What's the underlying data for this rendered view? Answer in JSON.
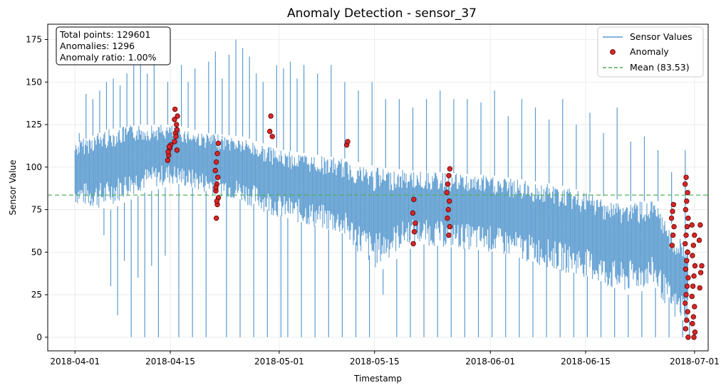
{
  "chart_data": {
    "type": "line",
    "title": "Anomaly Detection - sensor_37",
    "xlabel": "Timestamp",
    "ylabel": "Sensor Value",
    "xlim": [
      "2018-03-28",
      "2018-07-03"
    ],
    "ylim": [
      -8,
      184
    ],
    "x_ticks": [
      "2018-04-01",
      "2018-04-15",
      "2018-05-01",
      "2018-05-15",
      "2018-06-01",
      "2018-06-15",
      "2018-07-01"
    ],
    "y_ticks": [
      0,
      25,
      50,
      75,
      100,
      125,
      150,
      175
    ],
    "grid": true,
    "legend_position": "top-right",
    "stats": {
      "total_points": "Total points: 129601",
      "anomalies": "Anomalies: 1296",
      "anomaly_ratio": "Anomaly ratio: 1.00%"
    },
    "series": [
      {
        "name": "Sensor Values",
        "color": "#5b9bd0",
        "band": [
          {
            "date": "2018-04-01",
            "low": 78,
            "high": 115
          },
          {
            "date": "2018-04-05",
            "low": 75,
            "high": 122
          },
          {
            "date": "2018-04-10",
            "low": 85,
            "high": 125
          },
          {
            "date": "2018-04-15",
            "low": 90,
            "high": 125
          },
          {
            "date": "2018-04-20",
            "low": 85,
            "high": 120
          },
          {
            "date": "2018-04-25",
            "low": 80,
            "high": 118
          },
          {
            "date": "2018-05-01",
            "low": 70,
            "high": 110
          },
          {
            "date": "2018-05-10",
            "low": 60,
            "high": 105
          },
          {
            "date": "2018-05-15",
            "low": 40,
            "high": 100
          },
          {
            "date": "2018-05-20",
            "low": 55,
            "high": 98
          },
          {
            "date": "2018-06-01",
            "low": 50,
            "high": 95
          },
          {
            "date": "2018-06-10",
            "low": 40,
            "high": 90
          },
          {
            "date": "2018-06-15",
            "low": 35,
            "high": 85
          },
          {
            "date": "2018-06-20",
            "low": 25,
            "high": 80
          },
          {
            "date": "2018-06-25",
            "low": 30,
            "high": 80
          },
          {
            "date": "2018-06-28",
            "low": 10,
            "high": 60
          },
          {
            "date": "2018-06-30",
            "low": 10,
            "high": 55
          }
        ],
        "spikes": [
          {
            "date": "2018-04-01",
            "value": 120
          },
          {
            "date": "2018-04-02",
            "value": 143
          },
          {
            "date": "2018-04-03",
            "value": 140
          },
          {
            "date": "2018-04-04",
            "value": 145
          },
          {
            "date": "2018-04-05",
            "value": 150
          },
          {
            "date": "2018-04-06",
            "value": 152
          },
          {
            "date": "2018-04-07",
            "value": 148
          },
          {
            "date": "2018-04-08",
            "value": 155
          },
          {
            "date": "2018-04-09",
            "value": 160
          },
          {
            "date": "2018-04-10",
            "value": 163
          },
          {
            "date": "2018-04-11",
            "value": 155
          },
          {
            "date": "2018-04-12",
            "value": 165
          },
          {
            "date": "2018-04-14",
            "value": 150
          },
          {
            "date": "2018-04-16",
            "value": 160
          },
          {
            "date": "2018-04-17",
            "value": 150
          },
          {
            "date": "2018-04-18",
            "value": 158
          },
          {
            "date": "2018-04-20",
            "value": 162
          },
          {
            "date": "2018-04-21",
            "value": 168
          },
          {
            "date": "2018-04-22",
            "value": 152
          },
          {
            "date": "2018-04-23",
            "value": 166
          },
          {
            "date": "2018-04-24",
            "value": 175
          },
          {
            "date": "2018-04-25",
            "value": 170
          },
          {
            "date": "2018-04-26",
            "value": 165
          },
          {
            "date": "2018-04-27",
            "value": 155
          },
          {
            "date": "2018-04-28",
            "value": 150
          },
          {
            "date": "2018-04-30",
            "value": 160
          },
          {
            "date": "2018-05-01",
            "value": 158
          },
          {
            "date": "2018-05-02",
            "value": 162
          },
          {
            "date": "2018-05-03",
            "value": 152
          },
          {
            "date": "2018-05-04",
            "value": 160
          },
          {
            "date": "2018-05-06",
            "value": 155
          },
          {
            "date": "2018-05-08",
            "value": 160
          },
          {
            "date": "2018-05-10",
            "value": 150
          },
          {
            "date": "2018-05-12",
            "value": 145
          },
          {
            "date": "2018-05-14",
            "value": 150
          },
          {
            "date": "2018-05-16",
            "value": 140
          },
          {
            "date": "2018-05-18",
            "value": 140
          },
          {
            "date": "2018-05-20",
            "value": 135
          },
          {
            "date": "2018-05-22",
            "value": 140
          },
          {
            "date": "2018-05-24",
            "value": 145
          },
          {
            "date": "2018-05-26",
            "value": 140
          },
          {
            "date": "2018-05-28",
            "value": 140
          },
          {
            "date": "2018-05-30",
            "value": 138
          },
          {
            "date": "2018-06-01",
            "value": 145
          },
          {
            "date": "2018-06-03",
            "value": 130
          },
          {
            "date": "2018-06-05",
            "value": 140
          },
          {
            "date": "2018-06-07",
            "value": 135
          },
          {
            "date": "2018-06-09",
            "value": 128
          },
          {
            "date": "2018-06-11",
            "value": 140
          },
          {
            "date": "2018-06-13",
            "value": 125
          },
          {
            "date": "2018-06-15",
            "value": 132
          },
          {
            "date": "2018-06-17",
            "value": 120
          },
          {
            "date": "2018-06-19",
            "value": 135
          },
          {
            "date": "2018-06-21",
            "value": 115
          },
          {
            "date": "2018-06-23",
            "value": 118
          },
          {
            "date": "2018-06-25",
            "value": 110
          },
          {
            "date": "2018-06-27",
            "value": 97
          },
          {
            "date": "2018-06-29",
            "value": 110
          }
        ],
        "drops": [
          {
            "date": "2018-04-02",
            "value": 80
          },
          {
            "date": "2018-04-04",
            "value": 60
          },
          {
            "date": "2018-04-05",
            "value": 30
          },
          {
            "date": "2018-04-06",
            "value": 13
          },
          {
            "date": "2018-04-07",
            "value": 45
          },
          {
            "date": "2018-04-08",
            "value": 0
          },
          {
            "date": "2018-04-09",
            "value": 35
          },
          {
            "date": "2018-04-10",
            "value": 0
          },
          {
            "date": "2018-04-11",
            "value": 42
          },
          {
            "date": "2018-04-12",
            "value": 0
          },
          {
            "date": "2018-04-13",
            "value": 48
          },
          {
            "date": "2018-04-15",
            "value": 0
          },
          {
            "date": "2018-04-17",
            "value": 0
          },
          {
            "date": "2018-04-19",
            "value": 0
          },
          {
            "date": "2018-04-22",
            "value": 0
          },
          {
            "date": "2018-04-24",
            "value": 0
          },
          {
            "date": "2018-04-26",
            "value": 0
          },
          {
            "date": "2018-04-28",
            "value": 0
          },
          {
            "date": "2018-04-30",
            "value": 0
          },
          {
            "date": "2018-05-01",
            "value": 0
          },
          {
            "date": "2018-05-03",
            "value": 0
          },
          {
            "date": "2018-05-05",
            "value": 0
          },
          {
            "date": "2018-05-07",
            "value": 0
          },
          {
            "date": "2018-05-09",
            "value": 0
          },
          {
            "date": "2018-05-11",
            "value": 0
          },
          {
            "date": "2018-05-13",
            "value": 0
          },
          {
            "date": "2018-05-15",
            "value": 25
          },
          {
            "date": "2018-05-17",
            "value": 0
          },
          {
            "date": "2018-05-19",
            "value": 0
          },
          {
            "date": "2018-05-21",
            "value": 0
          },
          {
            "date": "2018-05-23",
            "value": 0
          },
          {
            "date": "2018-05-25",
            "value": 0
          },
          {
            "date": "2018-05-27",
            "value": 0
          },
          {
            "date": "2018-05-29",
            "value": 0
          },
          {
            "date": "2018-05-31",
            "value": 0
          },
          {
            "date": "2018-06-02",
            "value": 0
          },
          {
            "date": "2018-06-04",
            "value": 0
          },
          {
            "date": "2018-06-06",
            "value": 0
          },
          {
            "date": "2018-06-08",
            "value": 0
          },
          {
            "date": "2018-06-10",
            "value": 0
          },
          {
            "date": "2018-06-12",
            "value": 0
          },
          {
            "date": "2018-06-14",
            "value": 0
          },
          {
            "date": "2018-06-16",
            "value": 0
          },
          {
            "date": "2018-06-18",
            "value": 0
          },
          {
            "date": "2018-06-20",
            "value": 0
          },
          {
            "date": "2018-06-22",
            "value": 0
          },
          {
            "date": "2018-06-24",
            "value": 0
          },
          {
            "date": "2018-06-26",
            "value": 0
          },
          {
            "date": "2018-06-28",
            "value": 0
          },
          {
            "date": "2018-06-29",
            "value": 0
          }
        ]
      },
      {
        "name": "Anomaly",
        "color": "#d62728",
        "edge_color": "#5a0000",
        "points": [
          {
            "date": "2018-04-14",
            "value": 104
          },
          {
            "date": "2018-04-14",
            "value": 107
          },
          {
            "date": "2018-04-14",
            "value": 111
          },
          {
            "date": "2018-04-14",
            "value": 113
          },
          {
            "date": "2018-04-14",
            "value": 109
          },
          {
            "date": "2018-04-14",
            "value": 112
          },
          {
            "date": "2018-04-15",
            "value": 110
          },
          {
            "date": "2018-04-15",
            "value": 115
          },
          {
            "date": "2018-04-15",
            "value": 120
          },
          {
            "date": "2018-04-15",
            "value": 125
          },
          {
            "date": "2018-04-15",
            "value": 130
          },
          {
            "date": "2018-04-15",
            "value": 134
          },
          {
            "date": "2018-04-15",
            "value": 118
          },
          {
            "date": "2018-04-15",
            "value": 122
          },
          {
            "date": "2018-04-15",
            "value": 128
          },
          {
            "date": "2018-04-21",
            "value": 70
          },
          {
            "date": "2018-04-21",
            "value": 78
          },
          {
            "date": "2018-04-21",
            "value": 82
          },
          {
            "date": "2018-04-21",
            "value": 86
          },
          {
            "date": "2018-04-21",
            "value": 90
          },
          {
            "date": "2018-04-21",
            "value": 94
          },
          {
            "date": "2018-04-21",
            "value": 98
          },
          {
            "date": "2018-04-21",
            "value": 103
          },
          {
            "date": "2018-04-21",
            "value": 108
          },
          {
            "date": "2018-04-21",
            "value": 114
          },
          {
            "date": "2018-04-21",
            "value": 88
          },
          {
            "date": "2018-04-21",
            "value": 80
          },
          {
            "date": "2018-04-29",
            "value": 118
          },
          {
            "date": "2018-04-29",
            "value": 121
          },
          {
            "date": "2018-04-29",
            "value": 130
          },
          {
            "date": "2018-05-10",
            "value": 113
          },
          {
            "date": "2018-05-10",
            "value": 115
          },
          {
            "date": "2018-05-20",
            "value": 55
          },
          {
            "date": "2018-05-20",
            "value": 62
          },
          {
            "date": "2018-05-20",
            "value": 67
          },
          {
            "date": "2018-05-20",
            "value": 73
          },
          {
            "date": "2018-05-20",
            "value": 81
          },
          {
            "date": "2018-05-25",
            "value": 60
          },
          {
            "date": "2018-05-25",
            "value": 65
          },
          {
            "date": "2018-05-25",
            "value": 70
          },
          {
            "date": "2018-05-25",
            "value": 75
          },
          {
            "date": "2018-05-25",
            "value": 80
          },
          {
            "date": "2018-05-25",
            "value": 85
          },
          {
            "date": "2018-05-25",
            "value": 90
          },
          {
            "date": "2018-05-25",
            "value": 95
          },
          {
            "date": "2018-05-25",
            "value": 99
          },
          {
            "date": "2018-06-27",
            "value": 54
          },
          {
            "date": "2018-06-27",
            "value": 60
          },
          {
            "date": "2018-06-27",
            "value": 65
          },
          {
            "date": "2018-06-27",
            "value": 70
          },
          {
            "date": "2018-06-27",
            "value": 74
          },
          {
            "date": "2018-06-27",
            "value": 78
          },
          {
            "date": "2018-06-29",
            "value": 0
          },
          {
            "date": "2018-06-29",
            "value": 5
          },
          {
            "date": "2018-06-29",
            "value": 10
          },
          {
            "date": "2018-06-29",
            "value": 15
          },
          {
            "date": "2018-06-29",
            "value": 20
          },
          {
            "date": "2018-06-29",
            "value": 25
          },
          {
            "date": "2018-06-29",
            "value": 30
          },
          {
            "date": "2018-06-29",
            "value": 35
          },
          {
            "date": "2018-06-29",
            "value": 40
          },
          {
            "date": "2018-06-29",
            "value": 45
          },
          {
            "date": "2018-06-29",
            "value": 50
          },
          {
            "date": "2018-06-29",
            "value": 55
          },
          {
            "date": "2018-06-29",
            "value": 60
          },
          {
            "date": "2018-06-29",
            "value": 65
          },
          {
            "date": "2018-06-29",
            "value": 70
          },
          {
            "date": "2018-06-29",
            "value": 75
          },
          {
            "date": "2018-06-29",
            "value": 80
          },
          {
            "date": "2018-06-29",
            "value": 85
          },
          {
            "date": "2018-06-29",
            "value": 90
          },
          {
            "date": "2018-06-29",
            "value": 94
          },
          {
            "date": "2018-06-30",
            "value": 0
          },
          {
            "date": "2018-06-30",
            "value": 3
          },
          {
            "date": "2018-06-30",
            "value": 8
          },
          {
            "date": "2018-06-30",
            "value": 12
          },
          {
            "date": "2018-06-30",
            "value": 18
          },
          {
            "date": "2018-06-30",
            "value": 24
          },
          {
            "date": "2018-06-30",
            "value": 30
          },
          {
            "date": "2018-06-30",
            "value": 36
          },
          {
            "date": "2018-06-30",
            "value": 42
          },
          {
            "date": "2018-06-30",
            "value": 48
          },
          {
            "date": "2018-06-30",
            "value": 54
          },
          {
            "date": "2018-06-30",
            "value": 60
          },
          {
            "date": "2018-06-30",
            "value": 66
          },
          {
            "date": "2018-07-01",
            "value": 29
          },
          {
            "date": "2018-07-01",
            "value": 38
          },
          {
            "date": "2018-07-01",
            "value": 42
          },
          {
            "date": "2018-07-01",
            "value": 57
          },
          {
            "date": "2018-07-01",
            "value": 66
          }
        ]
      },
      {
        "name": "Mean (83.53)",
        "color": "#4caf50",
        "value": 83.53
      }
    ]
  }
}
